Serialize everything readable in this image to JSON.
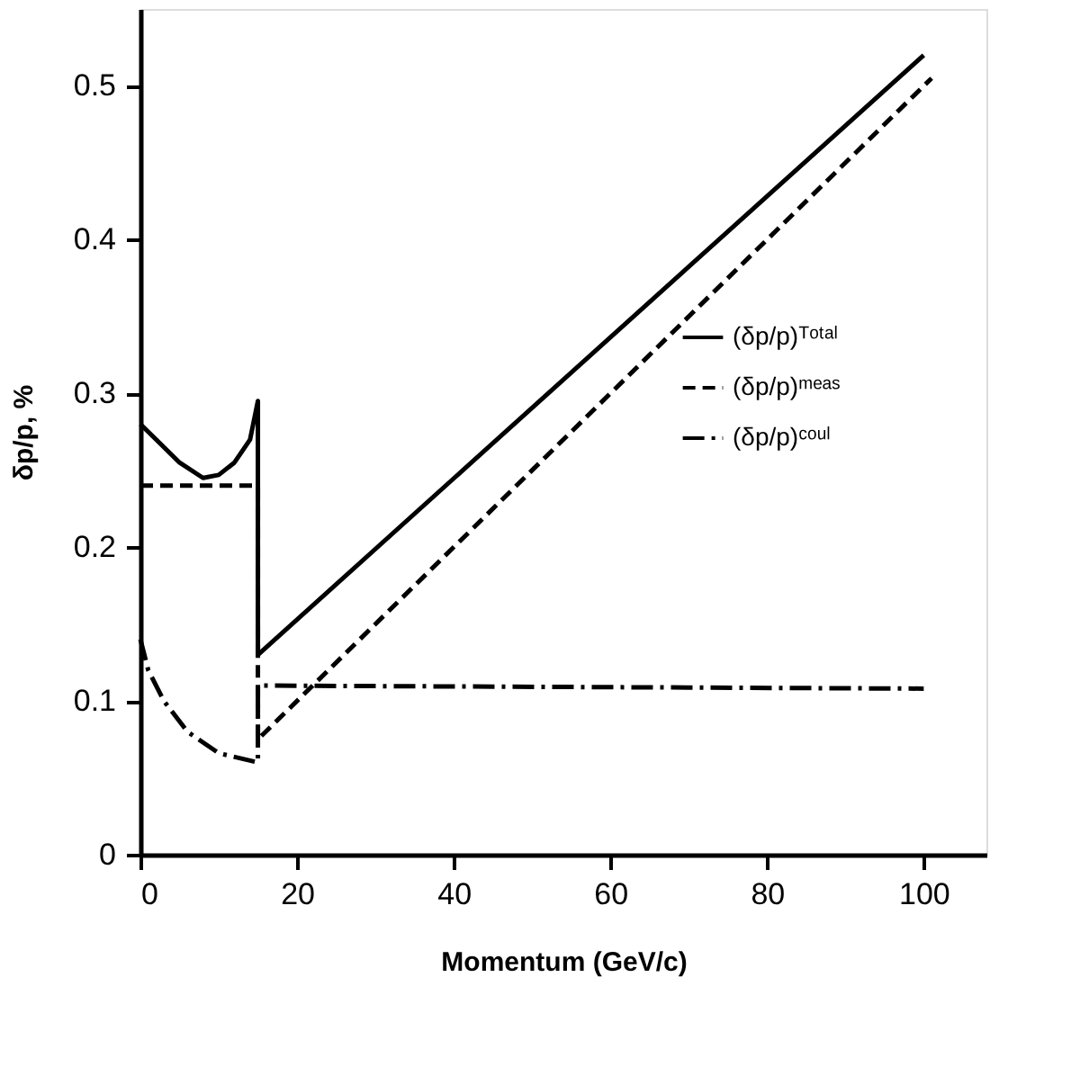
{
  "chart_data": {
    "type": "line",
    "xlabel": "Momentum (GeV/c)",
    "ylabel": "δp/p, %",
    "xlim": [
      0,
      108
    ],
    "ylim": [
      0,
      0.55
    ],
    "xticks": [
      0,
      20,
      40,
      60,
      80,
      100
    ],
    "yticks": [
      0,
      0.1,
      0.2,
      0.3,
      0.4,
      0.5
    ],
    "grid": false,
    "legend": "right",
    "marker": "none",
    "series": [
      {
        "name": "(δp/p)ᵀᵒᵗᵃˡ",
        "color": "#000000",
        "line_style": "solid",
        "x": [
          0,
          2,
          5,
          8,
          10,
          12,
          14,
          15,
          15,
          100
        ],
        "values": [
          0.28,
          0.27,
          0.255,
          0.245,
          0.247,
          0.255,
          0.27,
          0.295,
          0.13,
          0.52
        ]
      },
      {
        "name": "(δp/p)ᵐᵉᵃˢ",
        "color": "#000000",
        "line_style": "dashed",
        "x": [
          0,
          15,
          15,
          101
        ],
        "values": [
          0.24,
          0.24,
          0.075,
          0.505
        ]
      },
      {
        "name": "(δp/p)ᶜᵒᵘˡ",
        "color": "#000000",
        "line_style": "dashdot",
        "x": [
          0,
          1,
          3,
          6,
          10,
          15,
          15,
          100
        ],
        "values": [
          0.14,
          0.12,
          0.1,
          0.08,
          0.066,
          0.06,
          0.11,
          0.108
        ]
      }
    ]
  }
}
